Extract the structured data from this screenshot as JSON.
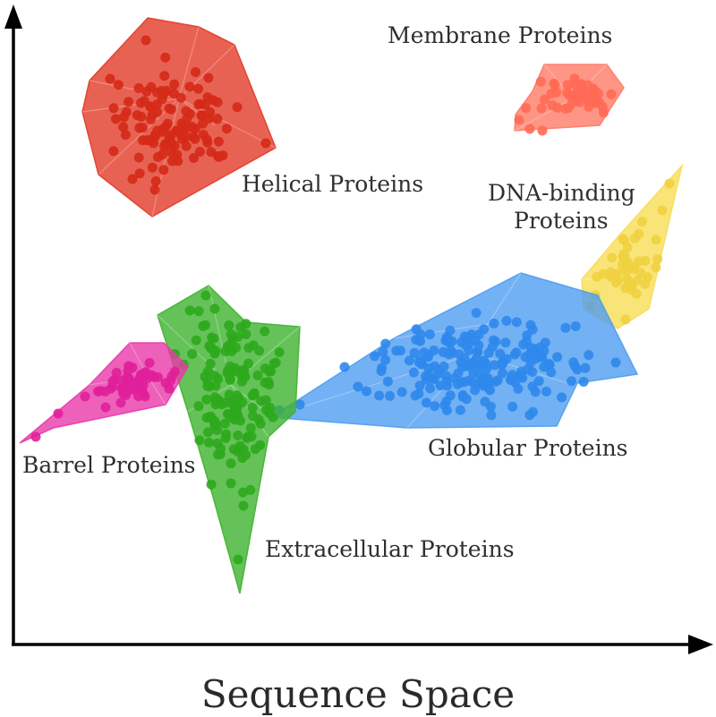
{
  "axis": {
    "x_title": "Sequence Space"
  },
  "clusters": [
    {
      "key": "helical",
      "label": "Helical Proteins",
      "color": "#e23b28",
      "point_color": "#d42a17"
    },
    {
      "key": "membrane",
      "label": "Membrane Proteins",
      "color": "#ff7a66",
      "point_color": "#ff6a55"
    },
    {
      "key": "dna",
      "label": "DNA-binding Proteins",
      "label_lines": [
        "DNA-binding",
        "Proteins"
      ],
      "color": "#f8dd55",
      "point_color": "#f0d040"
    },
    {
      "key": "globular",
      "label": "Globular Proteins",
      "color": "#4f9ef0",
      "point_color": "#2f88ec"
    },
    {
      "key": "extracellular",
      "label": "Extracellular Proteins",
      "color": "#3fb32f",
      "point_color": "#2ea81d"
    },
    {
      "key": "barrel",
      "label": "Barrel Proteins",
      "color": "#e83aaa",
      "point_color": "#e0209a"
    }
  ]
}
